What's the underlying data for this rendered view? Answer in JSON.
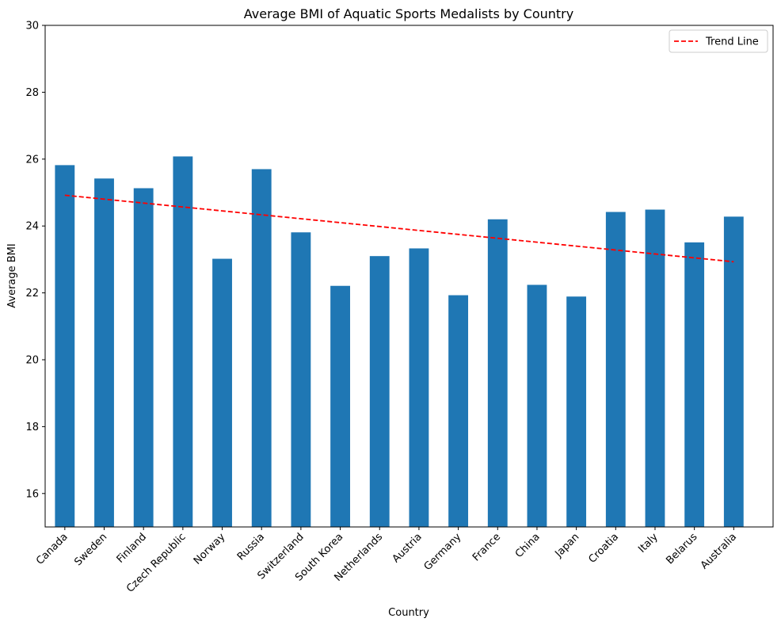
{
  "chart_data": {
    "type": "bar",
    "title": "Average BMI of Aquatic Sports Medalists by Country",
    "xlabel": "Country",
    "ylabel": "Average BMI",
    "ylim": [
      15,
      30
    ],
    "yticks": [
      16,
      18,
      20,
      22,
      24,
      26,
      28,
      30
    ],
    "categories": [
      "Canada",
      "Sweden",
      "Finland",
      "Czech Republic",
      "Norway",
      "Russia",
      "Switzerland",
      "South Korea",
      "Netherlands",
      "Austria",
      "Germany",
      "France",
      "China",
      "Japan",
      "Croatia",
      "Italy",
      "Belarus",
      "Australia"
    ],
    "series": [
      {
        "values": [
          25.82,
          25.42,
          25.13,
          26.08,
          23.02,
          25.7,
          23.81,
          22.21,
          23.1,
          23.33,
          21.93,
          24.2,
          22.24,
          21.89,
          24.42,
          24.49,
          23.51,
          24.28
        ],
        "color": "#1f77b4"
      }
    ],
    "trend_line": {
      "name": "Trend Line",
      "start": 24.92,
      "end": 22.93,
      "color": "#ff0000",
      "style": "dashed"
    },
    "legend_position": "top-right",
    "grid": false
  }
}
